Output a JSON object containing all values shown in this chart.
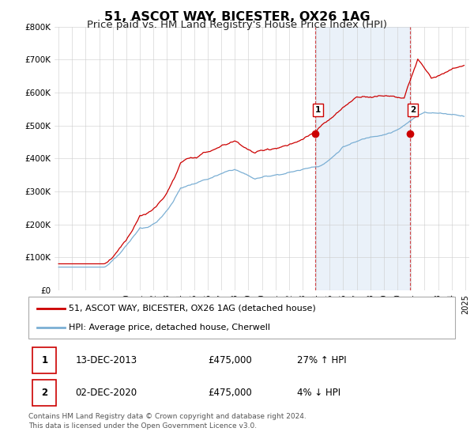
{
  "title": "51, ASCOT WAY, BICESTER, OX26 1AG",
  "subtitle": "Price paid vs. HM Land Registry's House Price Index (HPI)",
  "title_fontsize": 11.5,
  "subtitle_fontsize": 9.5,
  "red_color": "#cc0000",
  "blue_color": "#7bafd4",
  "shade_color": "#dce8f5",
  "shade_alpha": 0.6,
  "marker1_x": 2013.95,
  "marker1_y": 475000,
  "marker2_x": 2020.92,
  "marker2_y": 475000,
  "legend_label_red": "51, ASCOT WAY, BICESTER, OX26 1AG (detached house)",
  "legend_label_blue": "HPI: Average price, detached house, Cherwell",
  "table_row1": [
    "1",
    "13-DEC-2013",
    "£475,000",
    "27% ↑ HPI"
  ],
  "table_row2": [
    "2",
    "02-DEC-2020",
    "£475,000",
    "4% ↓ HPI"
  ],
  "footer": "Contains HM Land Registry data © Crown copyright and database right 2024.\nThis data is licensed under the Open Government Licence v3.0.",
  "ylim": [
    0,
    800000
  ],
  "yticks": [
    0,
    100000,
    200000,
    300000,
    400000,
    500000,
    600000,
    700000,
    800000
  ],
  "ytick_labels": [
    "£0",
    "£100K",
    "£200K",
    "£300K",
    "£400K",
    "£500K",
    "£600K",
    "£700K",
    "£800K"
  ],
  "xmin": 1994.7,
  "xmax": 2025.3
}
